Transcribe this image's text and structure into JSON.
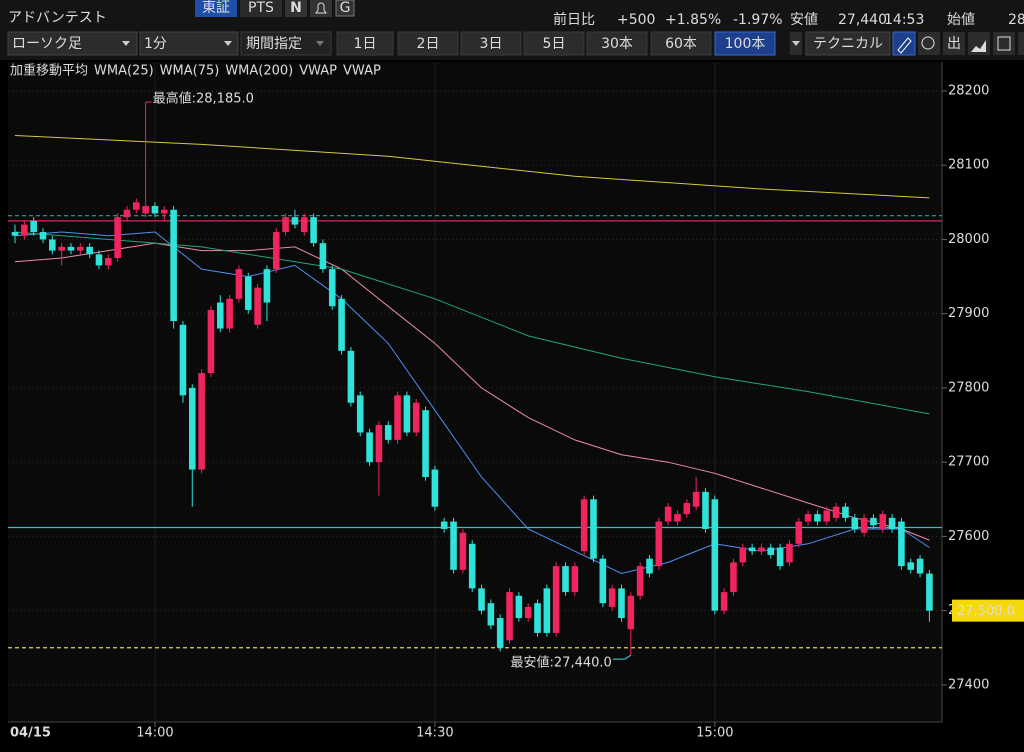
{
  "header": {
    "name": "アドバンテスト",
    "market": "東証",
    "pts": "PTS",
    "n_icon": "N",
    "g_icon": "G",
    "change_label": "前日比",
    "change": "+500",
    "change_pct": "+1.85%",
    "other_pct": "-1.97%",
    "low_label": "安値",
    "low": "27,440",
    "low_time": "14:53",
    "open_label": "始値",
    "open_partial": "28"
  },
  "toolbar": {
    "chart_kind": "ローソク足",
    "interval": "1分",
    "period": "期間指定",
    "ranges": [
      "1日",
      "2日",
      "3日",
      "5日",
      "30本",
      "60本",
      "100本"
    ],
    "active_range": 6,
    "technical": "テクニカル",
    "out": "出"
  },
  "chart_data": {
    "type": "candlestick",
    "legend_title": "加重移動平均",
    "date_label": "04/15",
    "categories": [
      null,
      null,
      null,
      null,
      null,
      null,
      null,
      null,
      null,
      null,
      null,
      null,
      null,
      null,
      null,
      "14:00",
      null,
      null,
      null,
      null,
      null,
      null,
      null,
      null,
      null,
      null,
      null,
      null,
      null,
      null,
      null,
      null,
      null,
      null,
      null,
      null,
      null,
      null,
      null,
      null,
      null,
      null,
      null,
      null,
      null,
      "14:30",
      null,
      null,
      null,
      null,
      null,
      null,
      null,
      null,
      null,
      null,
      null,
      null,
      null,
      null,
      null,
      null,
      null,
      null,
      null,
      null,
      null,
      null,
      null,
      null,
      null,
      null,
      null,
      null,
      null,
      "15:00",
      null,
      null,
      null,
      null,
      null,
      null,
      null,
      null,
      null,
      null,
      null,
      null,
      null,
      null,
      null,
      null,
      null,
      null,
      null,
      null,
      null,
      null,
      null
    ],
    "open": [
      28010,
      28005,
      28025,
      28010,
      28000,
      27985,
      27990,
      27985,
      27990,
      27980,
      27965,
      27975,
      28030,
      28040,
      28035,
      28045,
      28035,
      28040,
      27885,
      27800,
      27690,
      27820,
      27915,
      27880,
      27920,
      27950,
      27885,
      27960,
      27960,
      28010,
      28030,
      28010,
      28030,
      27995,
      27960,
      27920,
      27850,
      27790,
      27740,
      27700,
      27750,
      27730,
      27790,
      27740,
      27770,
      27690,
      27620,
      27620,
      27555,
      27590,
      27530,
      27510,
      27490,
      27460,
      27520,
      27490,
      27510,
      27530,
      27470,
      27560,
      27525,
      27580,
      27650,
      27570,
      27505,
      27530,
      27475,
      27520,
      27570,
      27560,
      27620,
      27620,
      27630,
      27640,
      27660,
      27650,
      27500,
      27525,
      27565,
      27585,
      27580,
      27585,
      27585,
      27565,
      27590,
      27620,
      27630,
      27620,
      27625,
      27640,
      27625,
      27605,
      27625,
      27610,
      27625,
      27620,
      27565,
      27570,
      27550
    ],
    "high": [
      28020,
      28025,
      28030,
      28015,
      28005,
      27995,
      27995,
      27995,
      27995,
      27985,
      27980,
      28035,
      28045,
      28055,
      28185,
      28050,
      28045,
      28045,
      27890,
      27805,
      27825,
      27910,
      27925,
      27925,
      27965,
      27955,
      27940,
      27965,
      28015,
      28035,
      28040,
      28035,
      28035,
      28000,
      27965,
      27925,
      27855,
      27795,
      27745,
      27755,
      27755,
      27795,
      27795,
      27785,
      27775,
      27695,
      27625,
      27625,
      27610,
      27595,
      27535,
      27515,
      27495,
      27530,
      27525,
      27510,
      27515,
      27535,
      27565,
      27565,
      27565,
      27655,
      27655,
      27575,
      27535,
      27535,
      27525,
      27565,
      27575,
      27625,
      27645,
      27635,
      27650,
      27680,
      27665,
      27655,
      27530,
      27570,
      27590,
      27590,
      27590,
      27590,
      27590,
      27595,
      27625,
      27635,
      27635,
      27640,
      27645,
      27645,
      27630,
      27630,
      27630,
      27635,
      27630,
      27625,
      27570,
      27575,
      27555
    ],
    "low": [
      27995,
      28000,
      28005,
      27995,
      27980,
      27965,
      27980,
      27980,
      27975,
      27960,
      27960,
      27970,
      28025,
      28035,
      28030,
      28030,
      28025,
      27880,
      27780,
      27640,
      27685,
      27815,
      27875,
      27875,
      27915,
      27900,
      27880,
      27890,
      27955,
      28005,
      28015,
      28005,
      27990,
      27955,
      27905,
      27845,
      27775,
      27735,
      27695,
      27655,
      27725,
      27725,
      27735,
      27735,
      27675,
      27635,
      27605,
      27550,
      27550,
      27525,
      27495,
      27475,
      27445,
      27455,
      27485,
      27485,
      27465,
      27465,
      27465,
      27520,
      27520,
      27575,
      27565,
      27505,
      27500,
      27485,
      27440,
      27515,
      27545,
      27555,
      27615,
      27615,
      27625,
      27635,
      27605,
      27495,
      27495,
      27520,
      27560,
      27575,
      27575,
      27570,
      27555,
      27560,
      27585,
      27615,
      27615,
      27615,
      27620,
      27620,
      27605,
      27600,
      27610,
      27605,
      27605,
      27555,
      27550,
      27545,
      27485
    ],
    "close": [
      28005,
      28020,
      28010,
      28000,
      27985,
      27990,
      27985,
      27990,
      27980,
      27965,
      27975,
      28030,
      28040,
      28050,
      28045,
      28035,
      28040,
      27890,
      27790,
      27690,
      27820,
      27905,
      27880,
      27920,
      27960,
      27905,
      27935,
      27915,
      28010,
      28030,
      28020,
      28030,
      27995,
      27960,
      27910,
      27850,
      27780,
      27740,
      27700,
      27750,
      27730,
      27790,
      27740,
      27780,
      27680,
      27640,
      27610,
      27555,
      27605,
      27530,
      27500,
      27480,
      27450,
      27525,
      27490,
      27505,
      27470,
      27470,
      27560,
      27525,
      27560,
      27650,
      27570,
      27510,
      27530,
      27490,
      27520,
      27560,
      27550,
      27620,
      27640,
      27630,
      27645,
      27660,
      27610,
      27500,
      27525,
      27565,
      27585,
      27580,
      27585,
      27575,
      27560,
      27590,
      27620,
      27630,
      27620,
      27635,
      27640,
      27625,
      27610,
      27625,
      27615,
      27630,
      27610,
      27560,
      27555,
      27550,
      27500
    ],
    "up_color": "#f0245f",
    "down_color": "#2fe3da",
    "series": [
      {
        "name": "WMA(25)",
        "color": "#4f8ff0",
        "x": [
          0,
          5,
          10,
          15,
          20,
          25,
          30,
          35,
          40,
          45,
          50,
          55,
          60,
          65,
          70,
          75,
          80,
          85,
          90,
          95,
          98
        ],
        "values": [
          28005,
          28010,
          28005,
          28010,
          27960,
          27950,
          27965,
          27920,
          27860,
          27770,
          27680,
          27610,
          27580,
          27550,
          27565,
          27590,
          27580,
          27590,
          27610,
          27610,
          27585
        ]
      },
      {
        "name": "WMA(75)",
        "color": "#f08aa8",
        "x": [
          0,
          5,
          10,
          15,
          20,
          25,
          30,
          35,
          40,
          45,
          50,
          55,
          60,
          65,
          70,
          75,
          80,
          85,
          90,
          95,
          98
        ],
        "values": [
          27970,
          27975,
          27985,
          27995,
          27985,
          27985,
          27990,
          27960,
          27910,
          27860,
          27800,
          27760,
          27730,
          27710,
          27700,
          27685,
          27665,
          27645,
          27625,
          27610,
          27595
        ]
      },
      {
        "name": "WMA(200)",
        "color": "#1fa67a",
        "x": [
          0,
          15,
          20,
          35,
          45,
          55,
          65,
          75,
          85,
          98
        ],
        "values": [
          28010,
          27995,
          27990,
          27960,
          27920,
          27870,
          27840,
          27815,
          27795,
          27765
        ]
      },
      {
        "name": "VWAP",
        "color": "#e8e8e8",
        "x": [],
        "values": []
      },
      {
        "name": "VWAP",
        "color": "#d8c93a",
        "x": [
          0,
          20,
          40,
          60,
          80,
          98
        ],
        "values": [
          28140,
          28128,
          28112,
          28085,
          28068,
          28056
        ]
      }
    ],
    "reference_lines": [
      {
        "value": 28032,
        "color": "#3a9a9a",
        "dash": true
      },
      {
        "value": 28025,
        "color": "#e0245e",
        "dash": false
      },
      {
        "value": 27612,
        "color": "#2bc4c4",
        "dash": false
      },
      {
        "value": 27450,
        "color": "#e6d84a",
        "dash": true
      }
    ],
    "last_price": 27500,
    "last_price_label": "27,500.0",
    "annotations": [
      {
        "text": "最高値:28,185.0",
        "value": 28185,
        "color": "#f0245f"
      },
      {
        "text": "最安値:27,440.0",
        "value": 27440,
        "color": "#2fe3da"
      }
    ],
    "ylim": [
      27350,
      28239
    ],
    "yticks": [
      27400,
      27500,
      27600,
      27700,
      27800,
      27900,
      28000,
      28100,
      28200
    ],
    "grid": true
  }
}
